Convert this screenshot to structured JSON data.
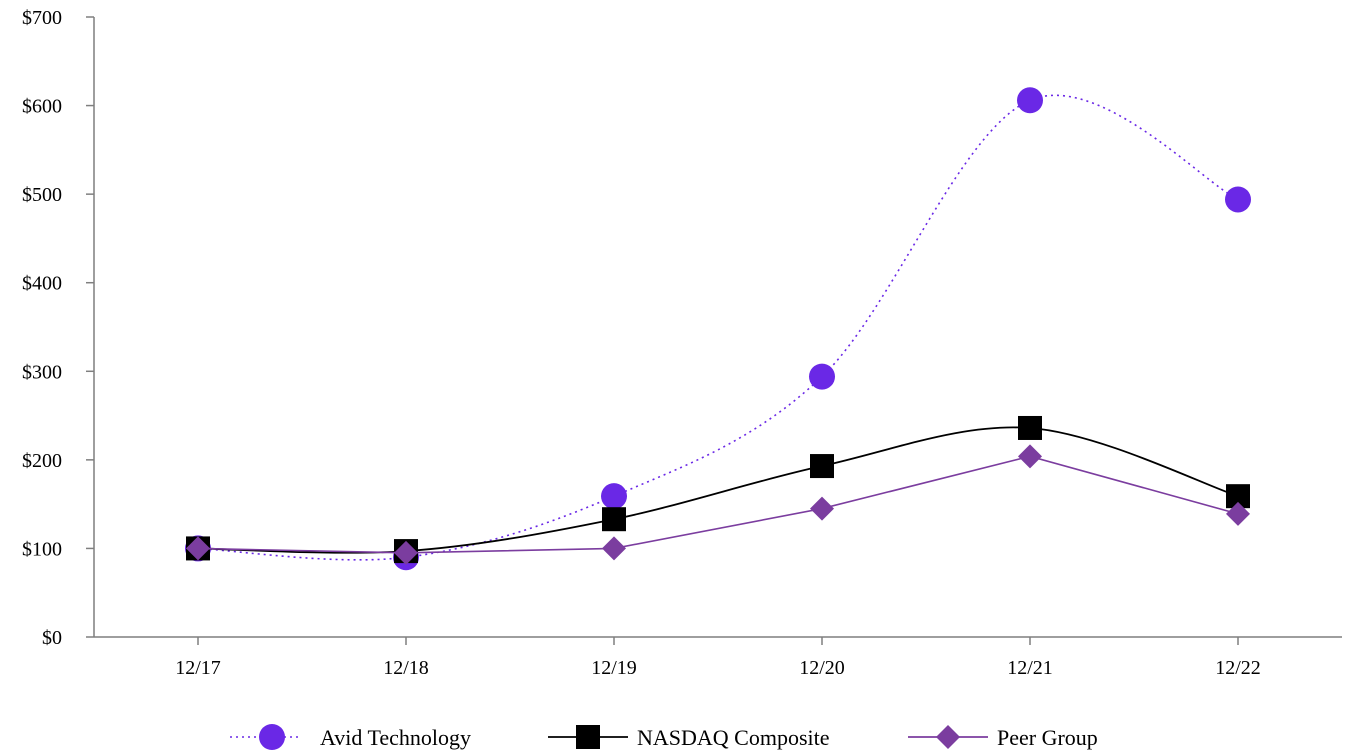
{
  "chart_data": {
    "type": "line",
    "categories": [
      "12/17",
      "12/18",
      "12/19",
      "12/20",
      "12/21",
      "12/22"
    ],
    "y_ticks": [
      "$0",
      "$100",
      "$200",
      "$300",
      "$400",
      "$500",
      "$600",
      "$700"
    ],
    "ylim": [
      0,
      700
    ],
    "grid": false,
    "legend_position": "bottom",
    "series": [
      {
        "name": "Avid Technology",
        "values": [
          100,
          90,
          159,
          294,
          606,
          494
        ],
        "color": "#6a28e6",
        "line_style": "dotted",
        "marker": "circle"
      },
      {
        "name": "NASDAQ Composite",
        "values": [
          100,
          97,
          133,
          193,
          236,
          159
        ],
        "color": "#000000",
        "line_style": "solid",
        "marker": "square"
      },
      {
        "name": "Peer Group",
        "values": [
          100,
          95,
          100,
          145,
          204,
          139
        ],
        "color": "#7b3d9f",
        "line_style": "solid",
        "marker": "diamond"
      }
    ]
  }
}
